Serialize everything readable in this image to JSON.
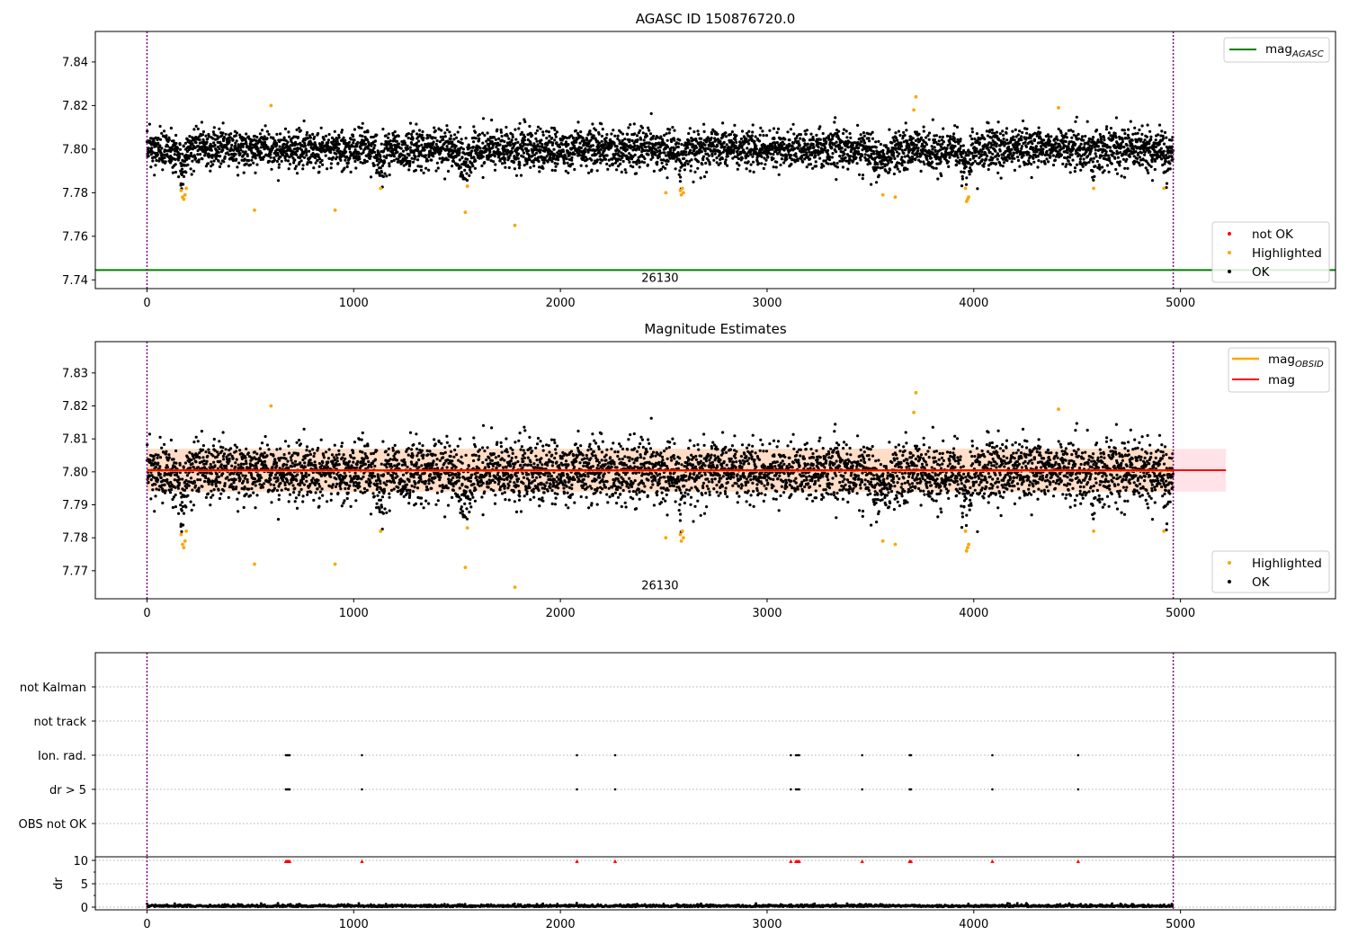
{
  "figure": {
    "colors": {
      "ok": "#000000",
      "highlighted": "#ffa500",
      "not_ok": "#ff0000",
      "mag_agasc": "#008000",
      "mag_obsid": "#ffa500",
      "mag": "#ff0000",
      "band": "#ffc0cb",
      "band_overlay": "#ffdab9",
      "obs_edge": "#800080"
    },
    "markers": {
      "ok": "black-dot",
      "highlighted": "orange-dot",
      "not_ok": "red-dot",
      "dr_flag": "red-triangle"
    }
  },
  "chart_data": [
    {
      "type": "scatter",
      "title": "AGASC ID 150876720.0",
      "xlim": [
        -250,
        5750
      ],
      "ylim": [
        7.736,
        7.854
      ],
      "xticks": [
        "0",
        "1000",
        "2000",
        "3000",
        "4000",
        "5000"
      ],
      "yticks": [
        "7.74",
        "7.76",
        "7.78",
        "7.80",
        "7.82",
        "7.84"
      ],
      "grid": false,
      "series": [
        {
          "name": "not OK",
          "points": []
        },
        {
          "name": "Highlighted",
          "points": [
            [
              165,
              7.781
            ],
            [
              172,
              7.778
            ],
            [
              178,
              7.777
            ],
            [
              184,
              7.779
            ],
            [
              190,
              7.782
            ],
            [
              520,
              7.772
            ],
            [
              600,
              7.82
            ],
            [
              910,
              7.772
            ],
            [
              1130,
              7.782
            ],
            [
              1540,
              7.771
            ],
            [
              1550,
              7.783
            ],
            [
              1780,
              7.765
            ],
            [
              2510,
              7.78
            ],
            [
              2580,
              7.781
            ],
            [
              2585,
              7.779
            ],
            [
              2590,
              7.782
            ],
            [
              2595,
              7.78
            ],
            [
              3560,
              7.779
            ],
            [
              3620,
              7.778
            ],
            [
              3710,
              7.818
            ],
            [
              3720,
              7.824
            ],
            [
              3960,
              7.782
            ],
            [
              3965,
              7.776
            ],
            [
              3970,
              7.777
            ],
            [
              3975,
              7.778
            ],
            [
              4410,
              7.819
            ],
            [
              4580,
              7.782
            ],
            [
              4920,
              7.782
            ]
          ]
        },
        {
          "name": "OK",
          "summary": "about 5000 points, mag between ~7.780 and ~7.817, mean ~7.800",
          "x_range": [
            0,
            4965
          ],
          "mean": 7.8,
          "spread": 0.0045
        }
      ],
      "legends": [
        {
          "location": "upper right",
          "entries": [
            "mag_{AGASC}"
          ]
        },
        {
          "location": "lower right",
          "entries": [
            "not OK",
            "Highlighted",
            "OK"
          ]
        }
      ],
      "hlines": [
        {
          "name": "mag_{AGASC}",
          "y": 7.7445
        }
      ],
      "vlines": [
        0,
        4965
      ],
      "annotations": [
        {
          "text": "26130",
          "x": 2482,
          "y": 7.7445
        }
      ]
    },
    {
      "type": "scatter",
      "title": "Magnitude Estimates",
      "xlim": [
        -250,
        5750
      ],
      "ylim": [
        7.7615,
        7.8395
      ],
      "xticks": [
        "0",
        "1000",
        "2000",
        "3000",
        "4000",
        "5000"
      ],
      "yticks": [
        "7.77",
        "7.78",
        "7.79",
        "7.80",
        "7.81",
        "7.82",
        "7.83"
      ],
      "grid": false,
      "series": [
        {
          "name": "Highlighted",
          "points": [
            [
              165,
              7.781
            ],
            [
              172,
              7.778
            ],
            [
              178,
              7.777
            ],
            [
              184,
              7.779
            ],
            [
              190,
              7.782
            ],
            [
              520,
              7.772
            ],
            [
              600,
              7.82
            ],
            [
              910,
              7.772
            ],
            [
              1130,
              7.782
            ],
            [
              1540,
              7.771
            ],
            [
              1550,
              7.783
            ],
            [
              1780,
              7.765
            ],
            [
              2510,
              7.78
            ],
            [
              2580,
              7.781
            ],
            [
              2585,
              7.779
            ],
            [
              2590,
              7.782
            ],
            [
              2595,
              7.78
            ],
            [
              3560,
              7.779
            ],
            [
              3620,
              7.778
            ],
            [
              3710,
              7.818
            ],
            [
              3720,
              7.824
            ],
            [
              3960,
              7.782
            ],
            [
              3965,
              7.776
            ],
            [
              3970,
              7.777
            ],
            [
              3975,
              7.778
            ],
            [
              4410,
              7.819
            ],
            [
              4580,
              7.782
            ],
            [
              4920,
              7.782
            ]
          ]
        },
        {
          "name": "OK",
          "summary": "same OK points as upper panel",
          "x_range": [
            0,
            4965
          ],
          "mean": 7.8,
          "spread": 0.0045
        }
      ],
      "legends": [
        {
          "location": "upper right",
          "entries": [
            "mag_{OBSID}",
            "mag"
          ]
        },
        {
          "location": "lower right",
          "entries": [
            "Highlighted",
            "OK"
          ]
        }
      ],
      "lines": [
        {
          "name": "mag_{OBSID}",
          "x": [
            0,
            4965
          ],
          "y": 7.8003
        },
        {
          "name": "mag",
          "x": [
            0,
            5220
          ],
          "y": 7.8005
        }
      ],
      "bands": [
        {
          "name": "mag",
          "x": [
            0,
            5220
          ],
          "y": [
            7.794,
            7.807
          ]
        },
        {
          "name": "mag_{OBSID}",
          "x": [
            0,
            4965
          ],
          "y": [
            7.794,
            7.807
          ]
        }
      ],
      "vlines": [
        0,
        4965
      ],
      "annotations": [
        {
          "text": "26130",
          "x": 2482,
          "y": 7.7655
        }
      ]
    },
    {
      "type": "scatter",
      "title": "",
      "xlim": [
        -250,
        5750
      ],
      "categories": [
        "not Kalman",
        "not track",
        "Ion. rad.",
        "dr > 5",
        "OBS not OK"
      ],
      "grid": true,
      "series": [
        {
          "name": "Ion. rad.",
          "x": [
            672,
            678,
            684,
            690,
            1040,
            2080,
            2265,
            3115,
            3140,
            3148,
            3155,
            3460,
            3690,
            3696,
            4090,
            4505
          ]
        },
        {
          "name": "dr > 5",
          "x": [
            672,
            678,
            684,
            690,
            1040,
            2080,
            2265,
            3115,
            3140,
            3148,
            3155,
            3460,
            3690,
            3696,
            4090,
            4505
          ]
        }
      ],
      "vlines": [
        0,
        4965
      ]
    },
    {
      "type": "scatter",
      "title": "",
      "ylabel": "dr",
      "xlim": [
        -250,
        5750
      ],
      "ylim": [
        -0.5,
        10.5
      ],
      "xticks": [
        "0",
        "1000",
        "2000",
        "3000",
        "4000",
        "5000"
      ],
      "yticks": [
        "0",
        "5",
        "10"
      ],
      "grid": true,
      "series": [
        {
          "name": "dr",
          "summary": "about 5000 points near 0, ranging 0 to ~1",
          "x_range": [
            0,
            4965
          ]
        },
        {
          "name": "dr flag",
          "x": [
            672,
            678,
            684,
            690,
            1040,
            2080,
            2265,
            3115,
            3140,
            3148,
            3155,
            3460,
            3690,
            3696,
            4090,
            4505
          ],
          "y": 9.8
        }
      ],
      "vlines": [
        0,
        4965
      ]
    }
  ]
}
